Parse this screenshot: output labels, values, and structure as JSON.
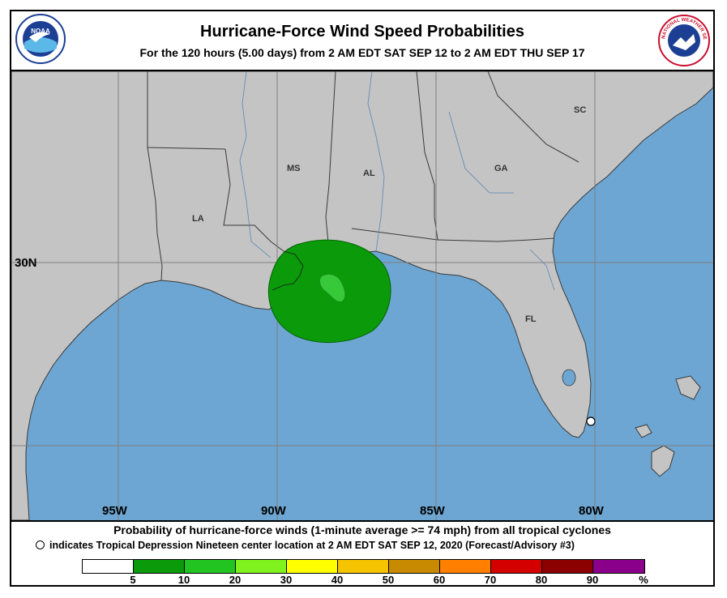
{
  "header": {
    "title": "Hurricane-Force Wind Speed Probabilities",
    "subtitle": "For the 120 hours (5.00 days) from 2 AM EDT SAT SEP 12 to 2 AM EDT THU SEP 17",
    "logo_left_text": "NOAA",
    "logo_right_text": "NATIONAL WEATHER SERVICE"
  },
  "map": {
    "latitude_label": "30N",
    "longitude_labels": [
      "95W",
      "90W",
      "85W",
      "80W"
    ],
    "state_labels": [
      "LA",
      "MS",
      "AL",
      "GA",
      "SC",
      "FL"
    ],
    "colors": {
      "land": "#c4c4c4",
      "water": "#6da6d2",
      "border": "#3a3a3a",
      "probability_5_10": "#0a9a0a",
      "probability_10_20": "#38c93b"
    }
  },
  "footer": {
    "line1": "Probability of hurricane-force winds (1-minute average >= 74 mph) from all tropical cyclones",
    "line2": "indicates Tropical Depression Nineteen center location at 2 AM EDT SAT SEP 12, 2020 (Forecast/Advisory #3)"
  },
  "scale": {
    "colors": [
      "#ffffff",
      "#0a9a0a",
      "#22c422",
      "#80f21e",
      "#ffff00",
      "#f5c300",
      "#c88a00",
      "#ff8000",
      "#d40000",
      "#8b0000",
      "#8a008a"
    ],
    "labels": [
      "5",
      "10",
      "20",
      "30",
      "40",
      "50",
      "60",
      "70",
      "80",
      "90",
      "%"
    ]
  }
}
